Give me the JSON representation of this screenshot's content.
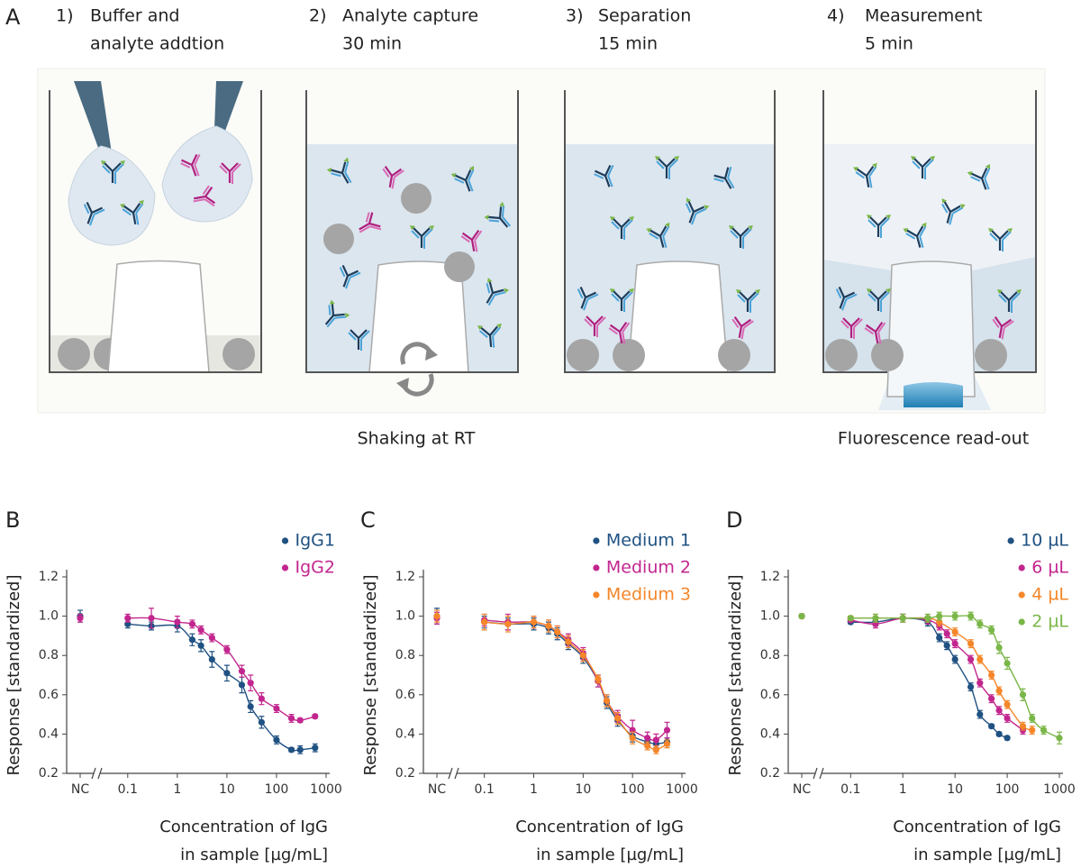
{
  "panel_a": {
    "label": "A",
    "steps": [
      {
        "number": "1)",
        "text": [
          "Buffer and",
          "analyte addtion"
        ]
      },
      {
        "number": "2)",
        "text": [
          "Analyte capture",
          "30 min"
        ]
      },
      {
        "number": "3)",
        "text": [
          "Separation",
          "15 min"
        ]
      },
      {
        "number": "4)",
        "text": [
          "Measurement",
          "5 min"
        ]
      }
    ],
    "captions": {
      "shaking": "Shaking at RT",
      "readout": "Fluorescence read-out"
    }
  },
  "chart_data": [
    {
      "type": "scatter-fit",
      "panel": "B",
      "ylabel": "Response [standardized]",
      "xlabel": [
        "Concentration of IgG",
        "in sample [µg/mL]"
      ],
      "x_scale": "log",
      "nc_label": "NC",
      "xlim": [
        0.03,
        1000
      ],
      "xticks": [
        0.1,
        1,
        10,
        100,
        1000
      ],
      "ylim": [
        0.2,
        1.2
      ],
      "yticks": [
        0.2,
        0.4,
        0.6,
        0.8,
        {
          "value": 1,
          "label": "1.0"
        },
        1.2
      ],
      "series": [
        {
          "name": "IgG1",
          "color": "#1f5182",
          "nc_value": 1.0,
          "nc_error": 0.03,
          "x": [
            0.1,
            0.3,
            1,
            2,
            3,
            5,
            10,
            20,
            30,
            50,
            100,
            200,
            300,
            600
          ],
          "values": [
            0.96,
            0.95,
            0.95,
            0.88,
            0.85,
            0.78,
            0.71,
            0.65,
            0.54,
            0.46,
            0.37,
            0.32,
            0.32,
            0.33
          ],
          "errors": [
            0.02,
            0.02,
            0.03,
            0.03,
            0.03,
            0.04,
            0.04,
            0.04,
            0.03,
            0.03,
            0.02,
            0.01,
            0.02,
            0.02
          ]
        },
        {
          "name": "IgG2",
          "color": "#c2268e",
          "nc_value": 0.99,
          "nc_error": 0.02,
          "x": [
            0.1,
            0.3,
            1,
            2,
            3,
            5,
            10,
            20,
            30,
            50,
            100,
            200,
            300,
            600
          ],
          "values": [
            0.99,
            0.99,
            0.97,
            0.96,
            0.93,
            0.89,
            0.83,
            0.72,
            0.66,
            0.58,
            0.53,
            0.48,
            0.47,
            0.49
          ],
          "errors": [
            0.02,
            0.05,
            0.03,
            0.02,
            0.02,
            0.02,
            0.02,
            0.03,
            0.04,
            0.03,
            0.02,
            0.02,
            0.01,
            0.01
          ]
        }
      ]
    },
    {
      "type": "scatter-fit",
      "panel": "C",
      "ylabel": "Response [standardized]",
      "xlabel": [
        "Concentration of IgG",
        "in sample [µg/mL]"
      ],
      "x_scale": "log",
      "nc_label": "NC",
      "xlim": [
        0.03,
        1000
      ],
      "xticks": [
        0.1,
        1,
        10,
        100,
        1000
      ],
      "ylim": [
        0.2,
        1.2
      ],
      "yticks": [
        0.2,
        0.4,
        0.6,
        0.8,
        {
          "value": 1,
          "label": "1.0"
        },
        1.2
      ],
      "series": [
        {
          "name": "Medium 1",
          "color": "#1f5182",
          "nc_value": 1.0,
          "nc_error": 0.04,
          "x": [
            0.1,
            0.3,
            1,
            2,
            3,
            5,
            10,
            20,
            30,
            50,
            100,
            200,
            300,
            500
          ],
          "values": [
            0.97,
            0.96,
            0.96,
            0.94,
            0.91,
            0.86,
            0.79,
            0.67,
            0.56,
            0.47,
            0.39,
            0.36,
            0.35,
            0.36
          ],
          "errors": [
            0.03,
            0.03,
            0.03,
            0.03,
            0.03,
            0.03,
            0.03,
            0.03,
            0.03,
            0.03,
            0.03,
            0.02,
            0.02,
            0.02
          ]
        },
        {
          "name": "Medium 2",
          "color": "#c2268e",
          "nc_value": 0.99,
          "nc_error": 0.03,
          "x": [
            0.1,
            0.3,
            1,
            2,
            3,
            5,
            10,
            20,
            30,
            50,
            100,
            200,
            300,
            500
          ],
          "values": [
            0.98,
            0.97,
            0.97,
            0.95,
            0.92,
            0.88,
            0.81,
            0.67,
            0.57,
            0.49,
            0.42,
            0.38,
            0.37,
            0.42
          ],
          "errors": [
            0.03,
            0.04,
            0.03,
            0.03,
            0.03,
            0.03,
            0.03,
            0.03,
            0.03,
            0.03,
            0.05,
            0.03,
            0.03,
            0.04
          ]
        },
        {
          "name": "Medium 3",
          "color": "#f5862a",
          "nc_value": 1.0,
          "nc_error": 0.03,
          "x": [
            0.1,
            0.3,
            1,
            2,
            3,
            5,
            10,
            20,
            30,
            50,
            100,
            200,
            300,
            500
          ],
          "values": [
            0.97,
            0.96,
            0.97,
            0.95,
            0.92,
            0.87,
            0.8,
            0.68,
            0.57,
            0.48,
            0.38,
            0.34,
            0.32,
            0.35
          ],
          "errors": [
            0.04,
            0.04,
            0.03,
            0.03,
            0.03,
            0.03,
            0.03,
            0.02,
            0.03,
            0.03,
            0.03,
            0.02,
            0.02,
            0.02
          ]
        }
      ]
    },
    {
      "type": "scatter-fit",
      "panel": "D",
      "ylabel": "Response [standardized]",
      "xlabel": [
        "Concentration of IgG",
        "in sample [µg/mL]"
      ],
      "x_scale": "log",
      "nc_label": "NC",
      "xlim": [
        0.03,
        1000
      ],
      "xticks": [
        0.1,
        1,
        10,
        100,
        1000
      ],
      "ylim": [
        0.2,
        1.2
      ],
      "yticks": [
        0.2,
        0.4,
        0.6,
        0.8,
        {
          "value": 1,
          "label": "1.0"
        },
        1.2
      ],
      "series": [
        {
          "name": "10 µL",
          "color": "#1f5182",
          "nc_value": 1.0,
          "nc_error": 0.01,
          "x": [
            0.1,
            0.3,
            1,
            3,
            5,
            7,
            10,
            20,
            30,
            50,
            70,
            100
          ],
          "values": [
            0.97,
            0.97,
            0.99,
            0.97,
            0.89,
            0.85,
            0.78,
            0.64,
            0.5,
            0.44,
            0.4,
            0.38
          ],
          "errors": [
            0.01,
            0.02,
            0.02,
            0.02,
            0.02,
            0.02,
            0.02,
            0.02,
            0.02,
            0.01,
            0.01,
            0.01
          ]
        },
        {
          "name": "6 µL",
          "color": "#c2268e",
          "nc_value": 1.0,
          "nc_error": 0.01,
          "x": [
            0.1,
            0.3,
            1,
            3,
            5,
            7,
            10,
            20,
            30,
            50,
            70,
            100,
            200
          ],
          "values": [
            0.98,
            0.96,
            0.99,
            0.98,
            0.95,
            0.91,
            0.86,
            0.78,
            0.66,
            0.58,
            0.52,
            0.48,
            0.42
          ],
          "errors": [
            0.01,
            0.02,
            0.02,
            0.02,
            0.02,
            0.02,
            0.02,
            0.02,
            0.02,
            0.02,
            0.02,
            0.02,
            0.02
          ]
        },
        {
          "name": "4 µL",
          "color": "#f5862a",
          "nc_value": 1.0,
          "nc_error": 0.01,
          "x": [
            0.1,
            0.3,
            1,
            3,
            5,
            10,
            20,
            30,
            50,
            70,
            100,
            200,
            300
          ],
          "values": [
            0.99,
            0.99,
            0.99,
            0.99,
            0.97,
            0.92,
            0.86,
            0.78,
            0.7,
            0.62,
            0.55,
            0.44,
            0.42
          ],
          "errors": [
            0.01,
            0.02,
            0.02,
            0.02,
            0.02,
            0.02,
            0.02,
            0.02,
            0.02,
            0.02,
            0.02,
            0.02,
            0.02
          ]
        },
        {
          "name": "2 µL",
          "color": "#7ab648",
          "nc_value": 1.0,
          "nc_error": 0.01,
          "x": [
            0.1,
            0.3,
            1,
            3,
            5,
            10,
            20,
            30,
            50,
            70,
            100,
            200,
            300,
            500,
            1000
          ],
          "values": [
            0.99,
            0.99,
            0.99,
            0.99,
            1.0,
            1.0,
            1.0,
            0.96,
            0.93,
            0.84,
            0.76,
            0.6,
            0.48,
            0.42,
            0.38
          ],
          "errors": [
            0.01,
            0.02,
            0.02,
            0.02,
            0.02,
            0.02,
            0.02,
            0.02,
            0.02,
            0.03,
            0.03,
            0.03,
            0.02,
            0.02,
            0.03
          ]
        }
      ]
    }
  ]
}
